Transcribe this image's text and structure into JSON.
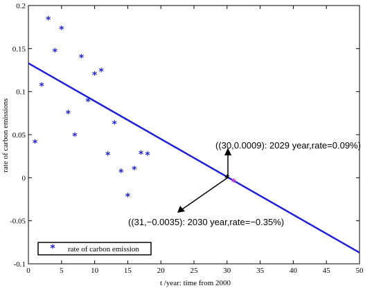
{
  "chart_data": {
    "type": "scatter",
    "xlabel": "t /year: time from 2000",
    "ylabel": "rate of carbon emissions",
    "xlim": [
      0,
      50
    ],
    "ylim": [
      -0.1,
      0.2
    ],
    "xticks": [
      "0",
      "5",
      "10",
      "15",
      "20",
      "25",
      "30",
      "35",
      "40",
      "45",
      "50"
    ],
    "yticks": [
      "-0.1",
      "-0.05",
      "0",
      "0.05",
      "0.1",
      "0.15",
      "0.2"
    ],
    "grid": false,
    "legend_position": "bottom-left",
    "colors": {
      "points": "#1f1fd6",
      "line": "#1f1fd6",
      "marker_2030": "#cc33cc",
      "marker_2029": "#000000"
    },
    "series": [
      {
        "name": "rate of carbon emission",
        "x": [
          1,
          2,
          3,
          4,
          5,
          6,
          7,
          8,
          9,
          10,
          11,
          12,
          13,
          14,
          15,
          16,
          17,
          18
        ],
        "y": [
          0.042,
          0.108,
          0.185,
          0.148,
          0.174,
          0.076,
          0.05,
          0.141,
          0.09,
          0.121,
          0.125,
          0.028,
          0.064,
          0.008,
          -0.02,
          0.011,
          0.029,
          0.028
        ]
      }
    ],
    "fit_line": {
      "x": [
        0,
        50
      ],
      "y": [
        0.133,
        -0.087
      ]
    },
    "annotations": [
      {
        "text": "((30,0.0009): 2029 year,rate=0.09%)",
        "x": 30,
        "y": 0.0009
      },
      {
        "text": "((31,−0.0035): 2030 year,rate=−0.35%)",
        "x": 31,
        "y": -0.0035
      }
    ]
  }
}
